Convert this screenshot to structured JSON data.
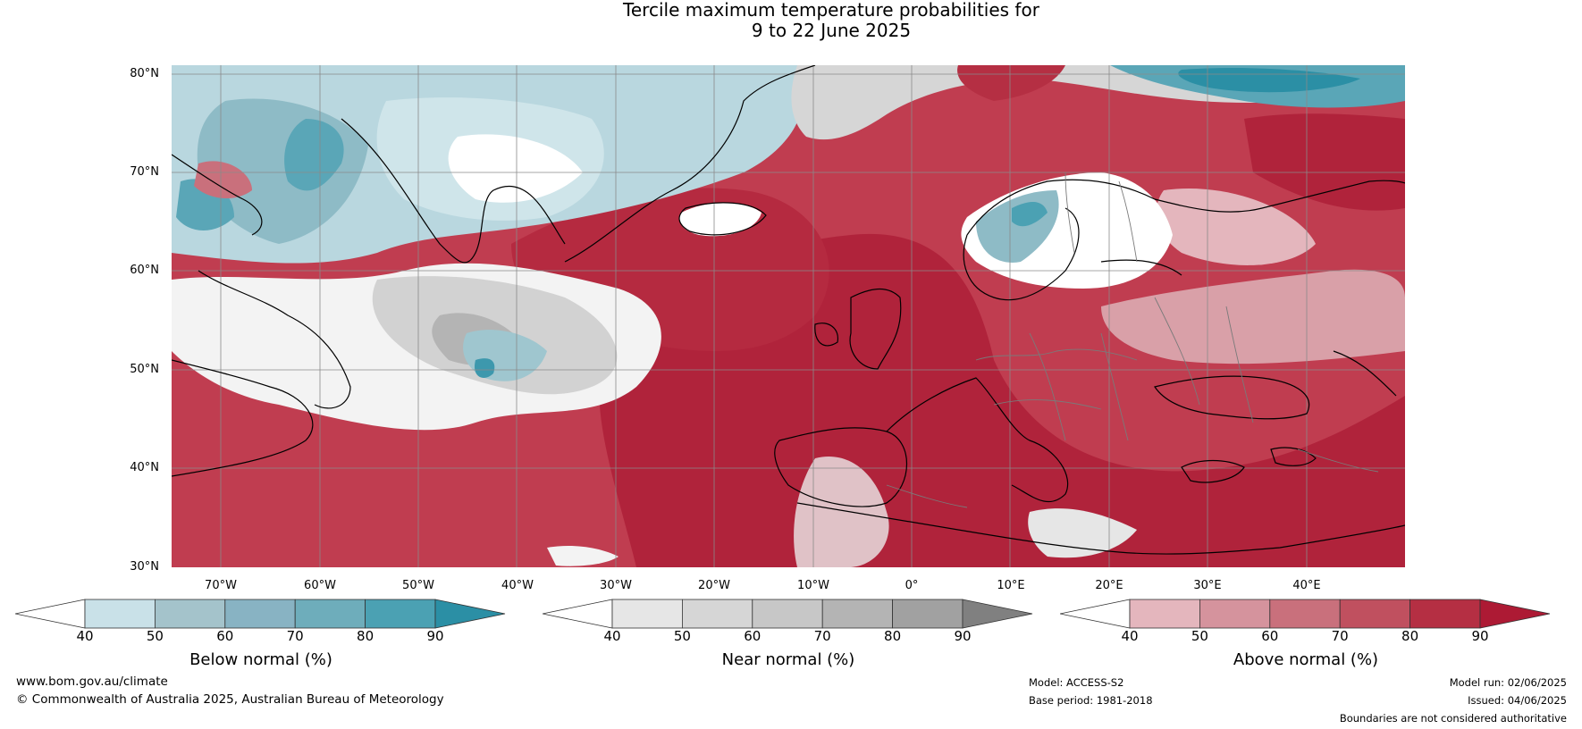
{
  "title": {
    "line1": "Tercile maximum temperature probabilities for",
    "line2": "9 to 22 June 2025"
  },
  "map": {
    "lat_labels": [
      "80°N",
      "70°N",
      "60°N",
      "50°N",
      "40°N",
      "30°N"
    ],
    "lon_labels": [
      "70°W",
      "60°W",
      "50°W",
      "40°W",
      "30°W",
      "20°W",
      "10°W",
      "0°",
      "10°E",
      "20°E",
      "30°E",
      "40°E"
    ],
    "extent": {
      "lon_min": -77.5,
      "lon_max": 47.5,
      "lat_min": 30,
      "lat_max": 81
    }
  },
  "colorbars": [
    {
      "title": "Below normal (%)",
      "ticks": [
        "40",
        "50",
        "60",
        "70",
        "80",
        "90"
      ],
      "colors": [
        "#c9e1e8",
        "#a4c3cb",
        "#88b3c3",
        "#6eadbb",
        "#4ba1b3",
        "#2b8fa5"
      ]
    },
    {
      "title": "Near normal (%)",
      "ticks": [
        "40",
        "50",
        "60",
        "70",
        "80",
        "90"
      ],
      "colors": [
        "#e6e6e6",
        "#d6d6d6",
        "#c7c7c7",
        "#b4b4b4",
        "#a1a1a1",
        "#808080"
      ]
    },
    {
      "title": "Above normal (%)",
      "ticks": [
        "40",
        "50",
        "60",
        "70",
        "80",
        "90"
      ],
      "colors": [
        "#e4b6bd",
        "#d5939d",
        "#c9707c",
        "#c0505f",
        "#b52f43",
        "#ad1a34"
      ]
    }
  ],
  "footer": {
    "website": "www.bom.gov.au/climate",
    "copyright": "© Commonwealth of Australia 2025, Australian Bureau of Meteorology",
    "model": "Model: ACCESS-S2",
    "base_period": "Base period: 1981-2018",
    "model_run": "Model run: 02/06/2025",
    "issued": "Issued: 04/06/2025",
    "disclaimer": "Boundaries are not considered authoritative"
  }
}
